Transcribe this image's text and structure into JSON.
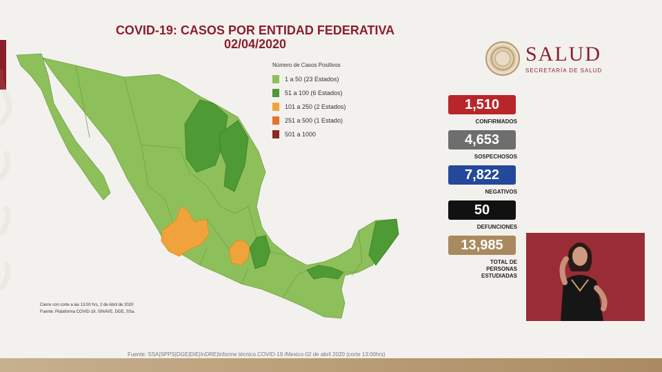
{
  "title": {
    "line1": "COVID-19: CASOS POR ENTIDAD FEDERATIVA",
    "line2": "02/04/2020"
  },
  "logo": {
    "name": "SALUD",
    "subtitle": "SECRETARÍA DE SALUD"
  },
  "legend": {
    "title": "Número de Casos Positivos",
    "items": [
      {
        "label": "1 a   50   (23 Estados)",
        "color": "#8dc05a"
      },
      {
        "label": "51 a   100   (6 Estados)",
        "color": "#4e9a35"
      },
      {
        "label": "101 a   250   (2 Estados)",
        "color": "#f0a33a"
      },
      {
        "label": "251 a   500   (1 Estado)",
        "color": "#e4712c"
      },
      {
        "label": "501 a 1000",
        "color": "#8a2a1e"
      }
    ]
  },
  "stats": [
    {
      "value": "1,510",
      "label": "CONFIRMADOS",
      "color": "#b8262a"
    },
    {
      "value": "4,653",
      "label": "SOSPECHOSOS",
      "color": "#6e6e6e"
    },
    {
      "value": "7,822",
      "label": "NEGATIVOS",
      "color": "#24489a"
    },
    {
      "value": "50",
      "label": "DEFUNCIONES",
      "color": "#111111"
    },
    {
      "value": "13,985",
      "label": "TOTAL DE PERSONAS ESTUDIADAS",
      "color": "#a98a5e"
    }
  ],
  "notes": {
    "line1": "Cierre con corte a las 13:00 hrs, 2 de Abril de 2020",
    "line2": "Fuente: Plataforma COVID-19, SINAVE, DGE, SSa."
  },
  "footer_source": "Fuente: SSA|SPPS|DGE|DIE|InDRE|Informe técnico.COVID-19 /Mexico-02 de abril 2020 (corte 13:00hrs)",
  "colors": {
    "light_green": "#8dc05a",
    "dark_green": "#4e9a35",
    "orange": "#f0a33a",
    "dark_orange": "#e4712c",
    "accent": "#8a1f2c"
  }
}
